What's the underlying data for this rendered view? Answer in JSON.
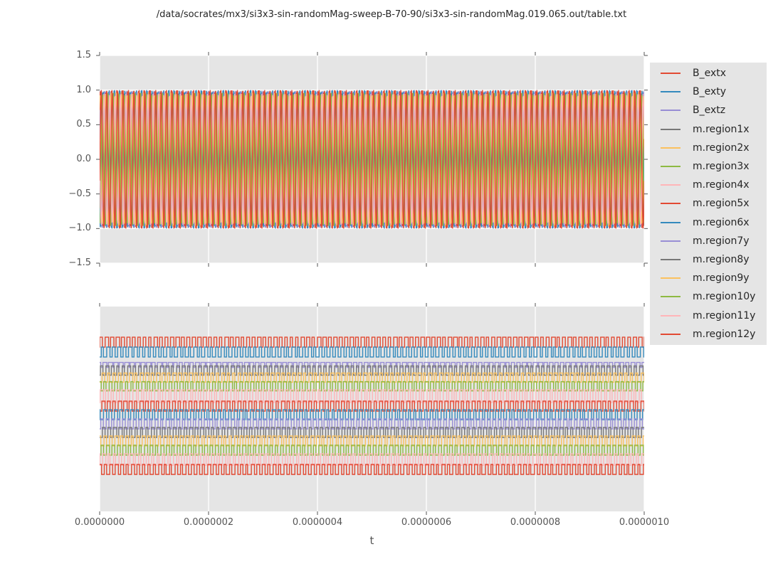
{
  "title": "/data/socrates/mx3/si3x3-sin-randomMag-sweep-B-70-90/si3x3-sin-randomMag.019.065.out/table.txt",
  "xlabel": "t",
  "style": {
    "figure_bg": "#FFFFFF",
    "axes_bg": "#E5E5E5",
    "grid_color": "#FFFFFF",
    "tick_color": "#555555",
    "text_color": "#262626",
    "palette": {
      "red": "#E24A33",
      "blue": "#348ABD",
      "purple": "#988ED5",
      "gray": "#777777",
      "orange": "#FBC15E",
      "green": "#8EBA42",
      "pink": "#FFB5B8"
    }
  },
  "legend": {
    "position": "right",
    "entries": [
      {
        "label": "B_extx",
        "color": "#E24A33"
      },
      {
        "label": "B_exty",
        "color": "#348ABD"
      },
      {
        "label": "B_extz",
        "color": "#988ED5"
      },
      {
        "label": "m.region1x",
        "color": "#777777"
      },
      {
        "label": "m.region2x",
        "color": "#FBC15E"
      },
      {
        "label": "m.region3x",
        "color": "#8EBA42"
      },
      {
        "label": "m.region4x",
        "color": "#FFB5B8"
      },
      {
        "label": "m.region5x",
        "color": "#E24A33"
      },
      {
        "label": "m.region6x",
        "color": "#348ABD"
      },
      {
        "label": "m.region7y",
        "color": "#988ED5"
      },
      {
        "label": "m.region8y",
        "color": "#777777"
      },
      {
        "label": "m.region9y",
        "color": "#FBC15E"
      },
      {
        "label": "m.region10y",
        "color": "#8EBA42"
      },
      {
        "label": "m.region11y",
        "color": "#FFB5B8"
      },
      {
        "label": "m.region12y",
        "color": "#E24A33"
      }
    ]
  },
  "chart_data": [
    {
      "type": "line",
      "name": "top-subplot",
      "wave": "sine",
      "grid": true,
      "xlim": [
        0,
        1e-06
      ],
      "ylim": [
        -1.5,
        1.5
      ],
      "x_ticks": [
        0,
        2e-07,
        4e-07,
        6e-07,
        8e-07,
        1e-06
      ],
      "x_tick_labels_shown": false,
      "y_ticks": [
        1.5,
        1.0,
        0.5,
        0.0,
        -0.5,
        -1.0,
        -1.5
      ],
      "y_tick_labels": [
        "1.5",
        "1.0",
        "0.5",
        "0.0",
        "−0.5",
        "−1.0",
        "−1.5"
      ],
      "cycles": 100,
      "series": [
        {
          "name": "B_extx",
          "color": "#E24A33",
          "amplitude": 1.0,
          "phase": 0.0
        },
        {
          "name": "B_exty",
          "color": "#348ABD",
          "amplitude": 1.0,
          "phase": 0.5
        },
        {
          "name": "B_extz",
          "color": "#988ED5",
          "amplitude": 0.99,
          "phase": 0.25
        },
        {
          "name": "m.region1x",
          "color": "#777777",
          "amplitude": 0.97,
          "phase": 0.08
        },
        {
          "name": "m.region2x",
          "color": "#FBC15E",
          "amplitude": 0.97,
          "phase": 0.33
        },
        {
          "name": "m.region3x",
          "color": "#8EBA42",
          "amplitude": 0.96,
          "phase": 0.58
        },
        {
          "name": "m.region4x",
          "color": "#FFB5B8",
          "amplitude": 0.95,
          "phase": 0.83
        },
        {
          "name": "m.region5x",
          "color": "#E24A33",
          "amplitude": 1.0,
          "phase": 0.12
        },
        {
          "name": "m.region6x",
          "color": "#348ABD",
          "amplitude": 1.0,
          "phase": 0.62
        },
        {
          "name": "m.region7y",
          "color": "#988ED5",
          "amplitude": 0.98,
          "phase": 0.37
        },
        {
          "name": "m.region8y",
          "color": "#777777",
          "amplitude": 0.97,
          "phase": 0.87
        },
        {
          "name": "m.region9y",
          "color": "#FBC15E",
          "amplitude": 0.96,
          "phase": 0.2
        },
        {
          "name": "m.region10y",
          "color": "#8EBA42",
          "amplitude": 0.96,
          "phase": 0.7
        },
        {
          "name": "m.region11y",
          "color": "#FFB5B8",
          "amplitude": 0.95,
          "phase": 0.45
        },
        {
          "name": "m.region12y",
          "color": "#E24A33",
          "amplitude": 1.0,
          "phase": 0.95
        }
      ]
    },
    {
      "type": "line",
      "name": "bottom-subplot",
      "wave": "square",
      "grid": true,
      "xlim": [
        0,
        1e-06
      ],
      "x_ticks": [
        0,
        2e-07,
        4e-07,
        6e-07,
        8e-07,
        1e-06
      ],
      "x_tick_labels": [
        "0.0000000",
        "0.0000002",
        "0.0000004",
        "0.0000006",
        "0.0000008",
        "0.0000010"
      ],
      "x_tick_labels_shown": true,
      "y_ticks": [],
      "cycles": 100,
      "series": [
        {
          "name": "B_extx",
          "color": "#E24A33",
          "offset": 0.174,
          "amp": 0.0243,
          "duty": 0.55,
          "phase": 0.0
        },
        {
          "name": "B_exty",
          "color": "#348ABD",
          "offset": 0.222,
          "amp": 0.0243,
          "duty": 0.5,
          "phase": 0.3
        },
        {
          "name": "B_extz",
          "color": "#988ED5",
          "offset": 0.285,
          "amp": 0.0122,
          "duty": 0.72,
          "phase": 0.6
        },
        {
          "name": "m.region1x",
          "color": "#777777",
          "offset": 0.3125,
          "amp": 0.0225,
          "duty": 0.5,
          "phase": 0.15
        },
        {
          "name": "m.region2x",
          "color": "#FBC15E",
          "offset": 0.347,
          "amp": 0.0225,
          "duty": 0.5,
          "phase": 0.45
        },
        {
          "name": "m.region3x",
          "color": "#8EBA42",
          "offset": 0.389,
          "amp": 0.0225,
          "duty": 0.5,
          "phase": 0.75
        },
        {
          "name": "m.region4x",
          "color": "#FFB5B8",
          "offset": 0.4375,
          "amp": 0.031,
          "duty": 0.5,
          "phase": 0.1
        },
        {
          "name": "m.region5x",
          "color": "#E24A33",
          "offset": 0.486,
          "amp": 0.0243,
          "duty": 0.5,
          "phase": 0.4
        },
        {
          "name": "m.region6x",
          "color": "#348ABD",
          "offset": 0.528,
          "amp": 0.0243,
          "duty": 0.5,
          "phase": 0.7
        },
        {
          "name": "m.region7y",
          "color": "#988ED5",
          "offset": 0.573,
          "amp": 0.0243,
          "duty": 0.5,
          "phase": 0.2
        },
        {
          "name": "m.region8y",
          "color": "#777777",
          "offset": 0.6145,
          "amp": 0.0243,
          "duty": 0.5,
          "phase": 0.5
        },
        {
          "name": "m.region9y",
          "color": "#FBC15E",
          "offset": 0.656,
          "amp": 0.0243,
          "duty": 0.5,
          "phase": 0.8
        },
        {
          "name": "m.region10y",
          "color": "#8EBA42",
          "offset": 0.701,
          "amp": 0.0243,
          "duty": 0.5,
          "phase": 0.25
        },
        {
          "name": "m.region11y",
          "color": "#FFB5B8",
          "offset": 0.747,
          "amp": 0.028,
          "duty": 0.5,
          "phase": 0.55
        },
        {
          "name": "m.region12y",
          "color": "#E24A33",
          "offset": 0.795,
          "amp": 0.0243,
          "duty": 0.45,
          "phase": 0.85
        }
      ]
    }
  ]
}
